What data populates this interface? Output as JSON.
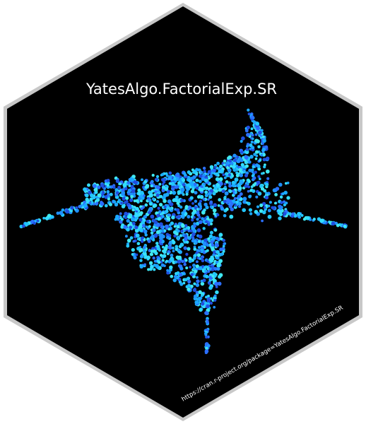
{
  "sticker": {
    "title": "YatesAlgo.FactorialExp.SR",
    "url": "https://cran.r-project.org/package=YatesAlgo.FactorialExp.SR"
  },
  "colors": {
    "background": "#000000",
    "border": "#c8c8c8",
    "text": "#ffffff",
    "dot_palette": [
      "#33ddff",
      "#22c6ff",
      "#1aa8ff",
      "#1e90ff",
      "#2b6fff",
      "#1f4fe0",
      "#40e8f0"
    ]
  }
}
